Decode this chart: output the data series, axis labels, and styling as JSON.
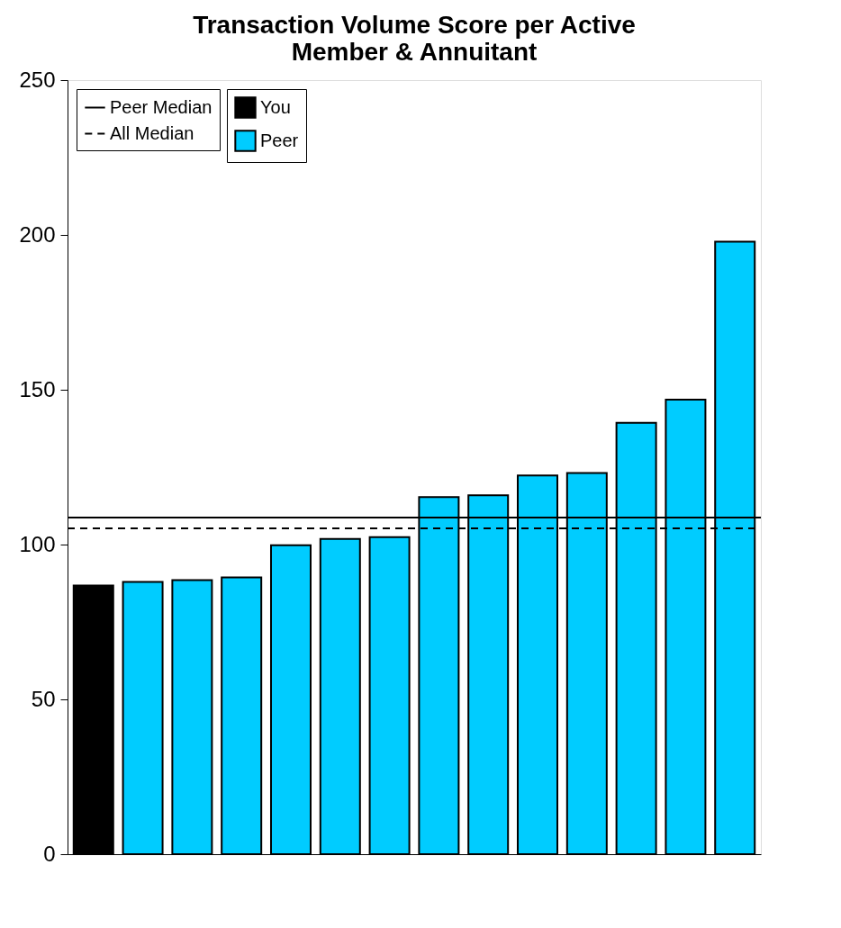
{
  "chart_data": {
    "type": "bar",
    "title": [
      "Transaction Volume Score per Active",
      "Member & Annuitant"
    ],
    "categories": [
      null,
      null,
      null,
      null,
      null,
      null,
      null,
      null,
      null,
      null,
      null,
      null,
      null,
      null
    ],
    "series": [
      {
        "name": "You",
        "color": "#000000",
        "values": [
          86.8,
          null,
          null,
          null,
          null,
          null,
          null,
          null,
          null,
          null,
          null,
          null,
          null,
          null
        ]
      },
      {
        "name": "Peer",
        "color": "#00ccff",
        "values": [
          null,
          87.9,
          88.5,
          89.4,
          99.8,
          101.8,
          102.4,
          115.3,
          115.9,
          122.3,
          123.1,
          139.3,
          146.8,
          197.8
        ]
      }
    ],
    "ref_lines": [
      {
        "axis": "y",
        "value": 108.7,
        "label": "Peer Median",
        "color": "#000000",
        "line_style": "solid"
      },
      {
        "axis": "y",
        "value": 105.2,
        "label": "All Median",
        "color": "#000000",
        "line_style": "dashed"
      }
    ],
    "ylim": [
      0,
      250
    ],
    "yticks": [
      0,
      50,
      100,
      150,
      200,
      250
    ],
    "legend": "top left",
    "tick_labels": "y",
    "grid": false
  }
}
